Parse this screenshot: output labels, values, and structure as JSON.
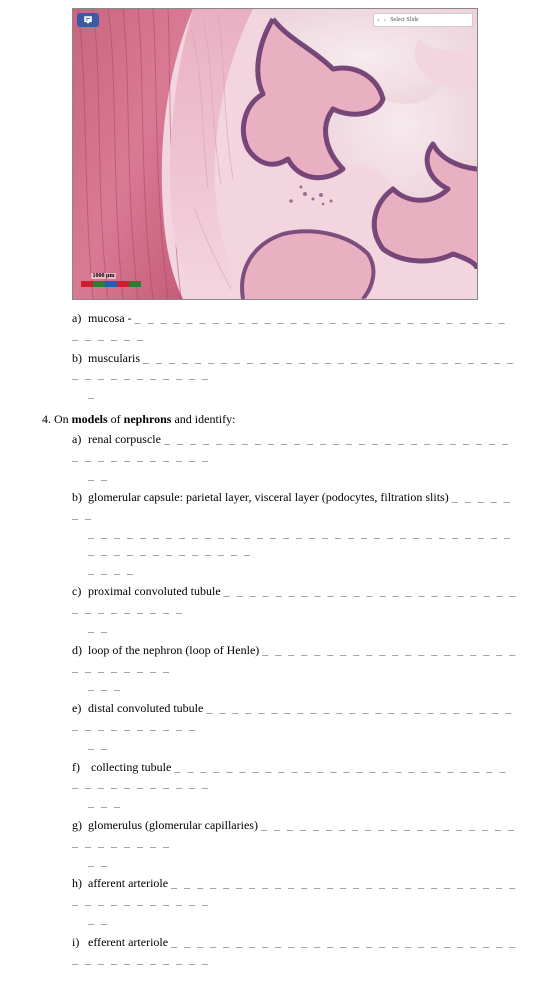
{
  "image": {
    "topbar_nav_left": "‹",
    "topbar_nav_right": "›",
    "topbar_label": "Select Slide",
    "scale_label": "1000 µm",
    "colors": {
      "tissue_dark": "#b84a6a",
      "tissue_mid": "#d97a95",
      "tissue_light": "#e9b0c2",
      "tissue_pale": "#f3d5df",
      "epithelium": "#69386f",
      "lumen": "#f2e7ec",
      "striations": "#a84360"
    }
  },
  "q_pre": {
    "items": [
      {
        "letter": "a)",
        "text": "mucosa -",
        "blank": "_ _ _ _ _ _ _ _ _ _ _ _ _ _ _ _ _ _ _ _ _ _ _ _ _ _ _ _ _ _ _ _ _ _ _"
      },
      {
        "letter": "b)",
        "text": "muscularis",
        "blank": "_ _ _ _ _ _ _ _ _ _ _ _ _ _ _ _ _ _ _ _ _ _ _ _ _ _ _ _ _ _ _ _ _ _ _ _ _ _ _ _",
        "cont": "_"
      }
    ]
  },
  "q4": {
    "number": "4.",
    "intro_pre": "On ",
    "intro_bold1": "models",
    "intro_mid": " of ",
    "intro_bold2": "nephrons",
    "intro_post": " and identify:",
    "items": [
      {
        "letter": "a)",
        "text": "renal corpuscle",
        "blank": "_ _ _ _ _ _ _ _ _ _ _ _ _ _ _ _ _ _ _ _ _ _ _ _ _ _ _ _ _ _ _ _ _ _ _ _ _ _",
        "cont": "_ _"
      },
      {
        "letter": "b)",
        "text": "glomerular capsule:  parietal layer, visceral layer (podocytes, filtration slits)",
        "blank": "_ _ _ _ _ _ _",
        "cont": "_ _ _ _ _ _ _ _ _ _ _ _ _ _ _ _ _ _ _ _ _ _ _ _ _ _ _ _ _ _ _ _ _ _ _ _ _ _ _ _ _ _ _ _ _ _",
        "cont2": "_ _ _ _"
      },
      {
        "letter": "c)",
        "text": "proximal convoluted tubule",
        "blank": "_ _ _ _ _ _ _ _ _ _ _ _ _ _ _ _ _ _ _ _ _ _ _ _ _ _ _ _ _ _ _ _",
        "cont": "_ _"
      },
      {
        "letter": "d)",
        "text": "loop of the nephron (loop of Henle)",
        "blank": "_ _ _ _ _ _ _ _ _ _ _ _ _ _ _ _ _ _ _ _ _ _ _ _ _ _ _ _",
        "cont": "_ _ _"
      },
      {
        "letter": "e)",
        "text": "distal convoluted tubule",
        "blank": "_ _ _ _ _ _ _ _ _ _ _ _ _ _ _ _ _ _ _ _ _ _ _ _ _ _ _ _ _ _ _ _ _ _",
        "cont": "_ _"
      },
      {
        "letter": "f)",
        "text": " collecting tubule",
        "blank": "_ _ _ _ _ _ _ _ _ _ _ _ _ _ _ _ _ _ _ _ _ _ _ _ _ _ _ _ _ _ _ _ _ _ _ _ _",
        "cont": "_ _ _"
      },
      {
        "letter": "g)",
        "text": "glomerulus (glomerular capillaries)",
        "blank": "_ _ _ _ _ _ _ _ _ _ _ _ _ _ _ _ _ _ _ _ _ _ _ _ _ _ _ _",
        "cont": "_ _"
      },
      {
        "letter": "h)",
        "text": "afferent arteriole",
        "blank": "_ _ _ _ _ _ _ _ _ _ _ _ _ _ _ _ _ _ _ _ _ _ _ _ _ _ _ _ _ _ _ _ _ _ _ _ _ _",
        "cont": "_ _"
      },
      {
        "letter": "i)",
        "text": "efferent arteriole",
        "blank": "_ _ _ _ _ _ _ _ _ _ _ _ _ _ _ _ _ _ _ _ _ _ _ _ _ _ _ _ _ _ _ _ _ _ _ _ _ _"
      }
    ]
  }
}
